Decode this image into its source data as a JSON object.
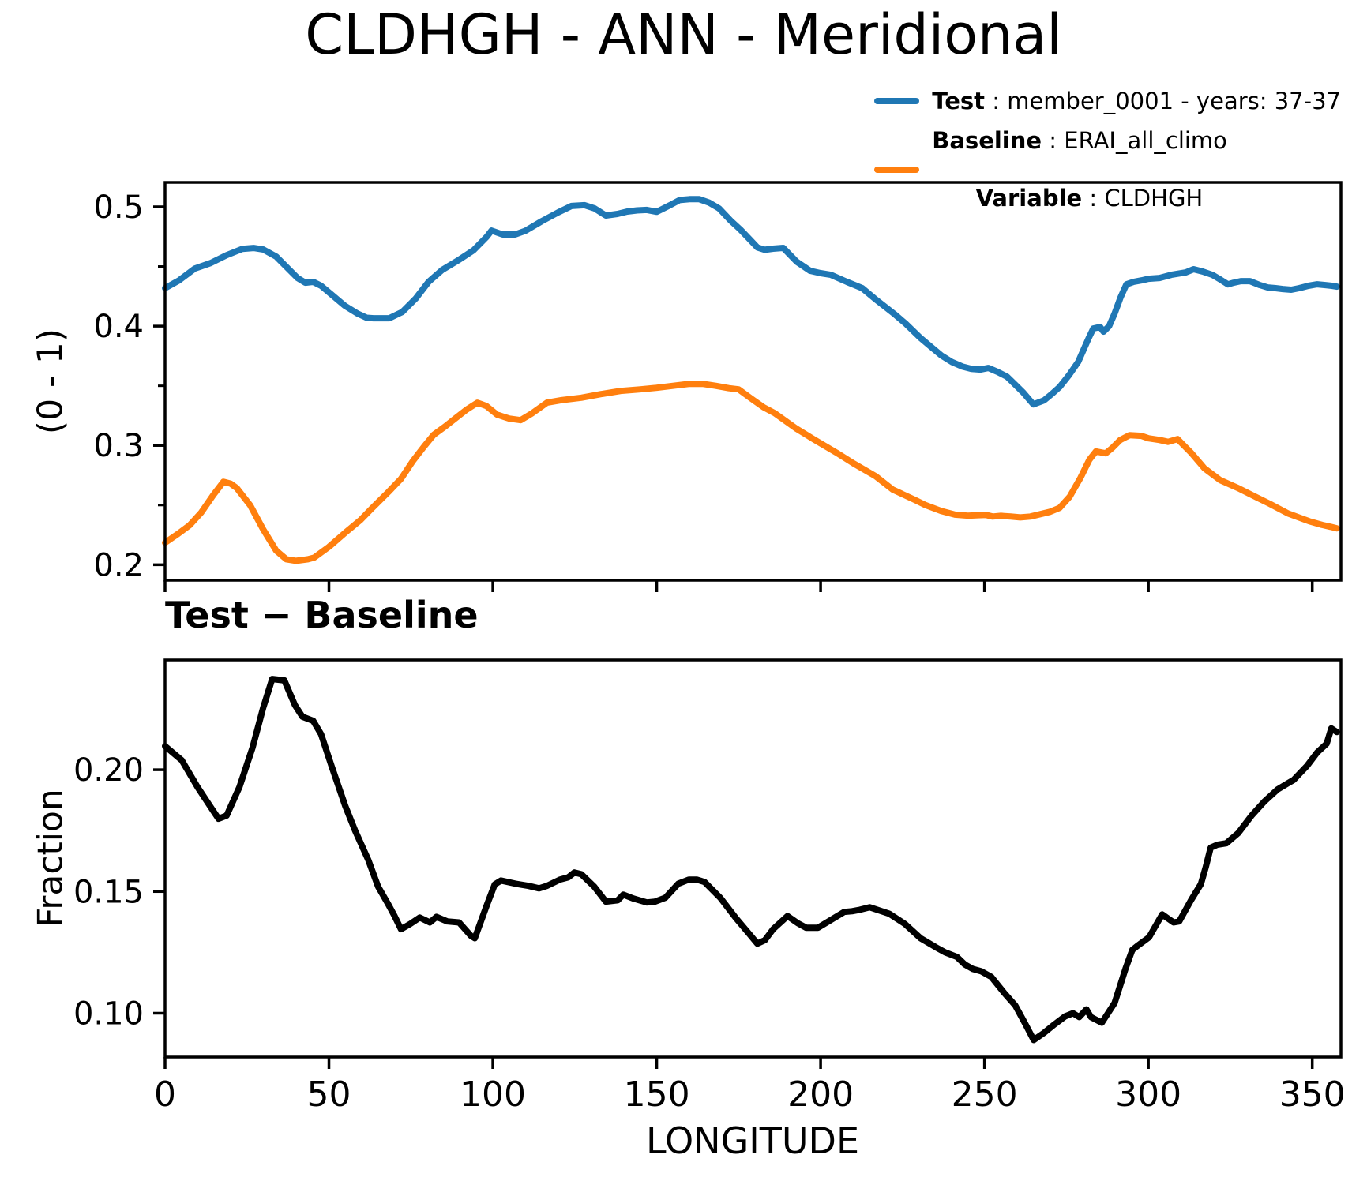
{
  "title": "CLDHGH - ANN - Meridional",
  "subtitle": "Test − Baseline",
  "legend": {
    "test_label": "Test",
    "sep": " : ",
    "test_value": "member_0001 - years: 37-37",
    "baseline_label": "Baseline",
    "baseline_value": "ERAI_all_climo",
    "variable_label": "Variable",
    "variable_value": "CLDHGH",
    "test_color": "#1f77b4",
    "baseline_color": "#ff7f0e"
  },
  "chart_data": [
    {
      "type": "line",
      "title": "CLDHGH - ANN - Meridional",
      "xlabel": "",
      "ylabel": "(0 - 1)",
      "xlim": [
        0,
        358.75
      ],
      "ylim": [
        0.187,
        0.5205
      ],
      "xticks": [
        0,
        50,
        100,
        150,
        200,
        250,
        300,
        350
      ],
      "xtick_labels": [
        "",
        "",
        "",
        "",
        "",
        "",
        "",
        ""
      ],
      "xtick_labels_visible": false,
      "yticks": [
        0.2,
        0.3,
        0.4,
        0.5
      ],
      "ytick_labels": [
        "0.2",
        "0.3",
        "0.4",
        "0.5"
      ],
      "yticks_minor": [
        0.25,
        0.35,
        0.45
      ],
      "grid": false,
      "legend_position": "upper-right above axes, no frame",
      "series": [
        {
          "name": "Test",
          "label": "Test : member_0001 - years: 37-37",
          "color": "#1f77b4",
          "x": [
            0,
            4.3,
            9.1,
            13.9,
            18.8,
            23.6,
            27,
            30,
            33.9,
            38,
            40.4,
            42.8,
            45.2,
            47.6,
            50.8,
            54.8,
            58.7,
            61.5,
            63.6,
            68.4,
            72.4,
            76.5,
            80.4,
            84.5,
            89.3,
            94.1,
            98.1,
            99.6,
            103,
            106.8,
            110,
            115,
            120,
            124,
            128,
            131,
            134.5,
            138,
            141,
            144,
            147,
            150,
            154,
            157,
            160,
            163,
            166,
            169,
            172.7,
            175.5,
            178.3,
            180.7,
            183,
            185.5,
            188.6,
            192.7,
            196.8,
            200,
            203.1,
            208,
            212.7,
            217,
            222.3,
            226,
            230.5,
            233.6,
            236.8,
            240,
            243.2,
            246,
            248.8,
            251.2,
            254,
            256.9,
            259.4,
            261.8,
            264.9,
            268.1,
            270.5,
            272.9,
            275.8,
            278.6,
            281.8,
            283.2,
            285.3,
            286.3,
            288,
            289.7,
            291.5,
            293.3,
            295.5,
            298,
            300,
            303.4,
            307,
            311.4,
            313.8,
            316.6,
            319.5,
            322,
            324.3,
            326,
            328.2,
            331,
            334,
            336.4,
            338.8,
            341,
            343.6,
            346,
            348.8,
            351.5,
            354,
            356,
            357.5
          ],
          "y": [
            0.4318,
            0.4384,
            0.4483,
            0.4529,
            0.4595,
            0.4648,
            0.4655,
            0.4642,
            0.4583,
            0.447,
            0.4404,
            0.4364,
            0.4371,
            0.4338,
            0.4265,
            0.4172,
            0.4106,
            0.407,
            0.4066,
            0.4066,
            0.4119,
            0.4232,
            0.4371,
            0.447,
            0.4549,
            0.4636,
            0.4748,
            0.4801,
            0.4768,
            0.4768,
            0.48,
            0.4881,
            0.4954,
            0.5007,
            0.5014,
            0.4987,
            0.4927,
            0.494,
            0.496,
            0.497,
            0.4974,
            0.4958,
            0.5013,
            0.5057,
            0.5064,
            0.5064,
            0.5035,
            0.4987,
            0.488,
            0.481,
            0.473,
            0.466,
            0.464,
            0.4649,
            0.4656,
            0.454,
            0.4464,
            0.4444,
            0.443,
            0.4371,
            0.4318,
            0.422,
            0.4106,
            0.402,
            0.39,
            0.3828,
            0.3755,
            0.37,
            0.3662,
            0.3642,
            0.3636,
            0.3649,
            0.3616,
            0.3576,
            0.351,
            0.3444,
            0.3344,
            0.3377,
            0.343,
            0.349,
            0.359,
            0.37,
            0.39,
            0.398,
            0.3993,
            0.3954,
            0.4,
            0.4106,
            0.424,
            0.435,
            0.4371,
            0.4384,
            0.4397,
            0.4404,
            0.443,
            0.445,
            0.4477,
            0.4457,
            0.443,
            0.439,
            0.435,
            0.4364,
            0.4377,
            0.4377,
            0.4344,
            0.4324,
            0.4318,
            0.4311,
            0.4305,
            0.4318,
            0.4338,
            0.4351,
            0.4344,
            0.4338,
            0.4331
          ]
        },
        {
          "name": "Baseline",
          "label": "Baseline : ERAI_all_climo / Variable : CLDHGH",
          "color": "#ff7f0e",
          "x": [
            0,
            4,
            7.5,
            11,
            14.7,
            17.8,
            20,
            21.9,
            26,
            29.9,
            33.9,
            37,
            40,
            43.6,
            45.5,
            50,
            55,
            59.7,
            63,
            68.1,
            72,
            75.6,
            79,
            82,
            85.5,
            88.5,
            92,
            95.3,
            98,
            101.3,
            105,
            108.5,
            112,
            116.5,
            121,
            127,
            133,
            139,
            145,
            150,
            155,
            160,
            164,
            168,
            172,
            175,
            179,
            182.6,
            186,
            192.7,
            198,
            204.8,
            210,
            216.8,
            222,
            228.8,
            232,
            236.8,
            241,
            244.9,
            248,
            250.5,
            252.5,
            255,
            258,
            260.9,
            264,
            267,
            270,
            272.9,
            276,
            279.3,
            282,
            284,
            287,
            289,
            291.4,
            294.3,
            297.9,
            300,
            303.4,
            306,
            308.9,
            311,
            313,
            317.1,
            321.9,
            327.4,
            332.2,
            337.1,
            342.6,
            349.1,
            353,
            355.6,
            357.5
          ],
          "y": [
            0.2185,
            0.226,
            0.2331,
            0.2437,
            0.2583,
            0.2695,
            0.268,
            0.2642,
            0.2497,
            0.2298,
            0.2119,
            0.2046,
            0.2033,
            0.2046,
            0.206,
            0.215,
            0.227,
            0.2377,
            0.247,
            0.2609,
            0.272,
            0.287,
            0.299,
            0.309,
            0.316,
            0.3225,
            0.33,
            0.3358,
            0.3331,
            0.3258,
            0.3225,
            0.3212,
            0.327,
            0.3358,
            0.338,
            0.34,
            0.343,
            0.3457,
            0.347,
            0.3483,
            0.35,
            0.3516,
            0.3516,
            0.35,
            0.348,
            0.347,
            0.339,
            0.332,
            0.327,
            0.3139,
            0.305,
            0.294,
            0.285,
            0.2742,
            0.263,
            0.2543,
            0.25,
            0.245,
            0.242,
            0.2411,
            0.2415,
            0.2417,
            0.2404,
            0.241,
            0.2404,
            0.2397,
            0.2404,
            0.2424,
            0.2444,
            0.2477,
            0.257,
            0.2729,
            0.288,
            0.295,
            0.2934,
            0.298,
            0.3046,
            0.3086,
            0.308,
            0.306,
            0.3046,
            0.303,
            0.3053,
            0.2995,
            0.294,
            0.2808,
            0.2709,
            0.2642,
            0.2576,
            0.251,
            0.243,
            0.2364,
            0.2334,
            0.2318,
            0.2305
          ]
        }
      ]
    },
    {
      "type": "line",
      "title": "Test − Baseline",
      "xlabel": "LONGITUDE",
      "ylabel": "Fraction",
      "xlim": [
        0,
        358.75
      ],
      "ylim": [
        0.082,
        0.2451
      ],
      "xticks": [
        0,
        50,
        100,
        150,
        200,
        250,
        300,
        350
      ],
      "xtick_labels": [
        "0",
        "50",
        "100",
        "150",
        "200",
        "250",
        "300",
        "350"
      ],
      "xtick_labels_visible": true,
      "yticks": [
        0.1,
        0.15,
        0.2
      ],
      "ytick_labels": [
        "0.10",
        "0.15",
        "0.20"
      ],
      "yticks_minor": [],
      "grid": false,
      "series": [
        {
          "name": "Test - Baseline difference",
          "color": "#000000",
          "x": [
            0,
            5.1,
            9.9,
            14.7,
            16.3,
            18.8,
            22.7,
            26.7,
            29.9,
            32.7,
            36.4,
            39.6,
            41.9,
            45.2,
            47.6,
            50.8,
            55,
            58,
            62,
            65,
            68,
            70,
            72,
            74.8,
            77.7,
            80.8,
            82.8,
            86.1,
            89.7,
            93.3,
            94.5,
            98.1,
            100.6,
            102.5,
            106.9,
            110.9,
            114.1,
            116.5,
            120.5,
            123,
            124.9,
            127,
            131,
            134.5,
            138.1,
            139.8,
            142.9,
            147,
            149.4,
            152.6,
            156.6,
            159.8,
            162.2,
            164.6,
            169.4,
            174.2,
            178.3,
            180.7,
            183,
            185.5,
            189.9,
            193,
            195.6,
            199.2,
            204,
            207.2,
            209.6,
            212,
            215,
            220.9,
            225.7,
            230.5,
            235.3,
            238,
            241.6,
            244,
            246.4,
            249,
            252.1,
            256,
            259.4,
            262.5,
            265,
            268.1,
            271.4,
            274.6,
            277,
            278.9,
            281.1,
            282.5,
            285.8,
            289.7,
            293,
            295.1,
            296.6,
            300.2,
            304.2,
            307.7,
            309.4,
            313,
            316,
            317.5,
            319,
            321,
            323.8,
            327.4,
            331.5,
            335.4,
            339.4,
            342.6,
            344.3,
            348.4,
            351.5,
            354.4,
            355.8,
            357.5
          ],
          "y": [
            0.2097,
            0.2039,
            0.1929,
            0.1831,
            0.1799,
            0.1812,
            0.1929,
            0.2091,
            0.2253,
            0.2373,
            0.2367,
            0.2266,
            0.2218,
            0.2201,
            0.2146,
            0.2016,
            0.185,
            0.175,
            0.163,
            0.152,
            0.145,
            0.14,
            0.1345,
            0.1367,
            0.1393,
            0.1373,
            0.1396,
            0.1377,
            0.1373,
            0.1318,
            0.1308,
            0.1442,
            0.1529,
            0.1545,
            0.1532,
            0.1523,
            0.1513,
            0.1523,
            0.1549,
            0.1558,
            0.1578,
            0.1571,
            0.1519,
            0.1458,
            0.1464,
            0.1487,
            0.1471,
            0.1455,
            0.1458,
            0.1474,
            0.1532,
            0.1549,
            0.1549,
            0.1539,
            0.1474,
            0.139,
            0.1325,
            0.1286,
            0.13,
            0.1345,
            0.1399,
            0.137,
            0.1351,
            0.1351,
            0.139,
            0.1416,
            0.1419,
            0.1425,
            0.1435,
            0.1409,
            0.1367,
            0.1308,
            0.127,
            0.125,
            0.1231,
            0.12,
            0.1182,
            0.1172,
            0.1149,
            0.1084,
            0.1032,
            0.0955,
            0.089,
            0.0919,
            0.0955,
            0.0987,
            0.1,
            0.0984,
            0.1016,
            0.0984,
            0.0961,
            0.1042,
            0.1182,
            0.126,
            0.1276,
            0.1312,
            0.1406,
            0.1373,
            0.1377,
            0.1464,
            0.153,
            0.16,
            0.168,
            0.1692,
            0.1698,
            0.174,
            0.1812,
            0.187,
            0.1919,
            0.1945,
            0.1958,
            0.2016,
            0.2071,
            0.2107,
            0.217,
            0.2155
          ]
        }
      ]
    }
  ]
}
